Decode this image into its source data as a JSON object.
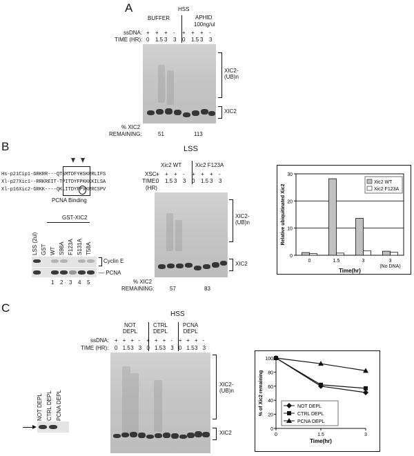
{
  "panels": {
    "a": "A",
    "b": "B",
    "c": "C"
  },
  "panel_a": {
    "header_hss": "HSS",
    "buffer": "BUFFER",
    "aphid": "APHID",
    "aphid_conc": "100ng/ul",
    "row_ssdna": "ssDNA:",
    "row_time": "TIME (HR):",
    "ssdna_marks": [
      "+",
      "+",
      "+",
      "-",
      "+",
      "+",
      "+",
      "-"
    ],
    "time_marks": [
      "0",
      "1.5",
      "3",
      "3",
      "0",
      "1.5",
      "3",
      "3"
    ],
    "label_ub": "XIC2-\n(UB)n",
    "label_xic2": "XIC2",
    "pct_label_1": "% XIC2",
    "pct_label_2": "REMAINING:",
    "pct_values": [
      "51",
      "113"
    ]
  },
  "panel_b": {
    "seq_lines": [
      "Hs-p21Cip1-GRKRR---QTSMTDFYHSKRRLIFS",
      "Xl-p27Xic1--RRKREIT-TPITDYFPKKKKILSA",
      "Xl-p16Xic2-GRKK----QKLITDYFPVKRRCSPV"
    ],
    "pcna_binding": "PCNA Binding",
    "gst_header": "GST-XIC2",
    "gst_lanes": [
      "LSS (2ul)",
      "GST",
      "WT",
      "S98A",
      "F123A",
      "S131A",
      "T58A"
    ],
    "lane_numbers": [
      "1",
      "2",
      "3",
      "4",
      "5"
    ],
    "cyclin": "Cyclin E",
    "pcna": "PCNA",
    "lss": "LSS",
    "wt": "Xic2 WT",
    "f123a": "Xic2 F123A",
    "row_xsc": "XSC:",
    "row_time": "TIME:",
    "row_hr": "(HR)",
    "xsc_marks": [
      "+",
      "+",
      "+",
      "-",
      "+",
      "+",
      "+",
      "-"
    ],
    "time_marks": [
      "0",
      "1.5",
      "3",
      "3",
      "0",
      "1.5",
      "3",
      "3"
    ],
    "label_ub": "XIC2-\n(UB)n",
    "label_xic2": "XIC2",
    "pct_label_1": "% XIC2",
    "pct_label_2": "REMAINING:",
    "pct_values": [
      "57",
      "83"
    ]
  },
  "panel_c": {
    "hss": "HSS",
    "not_depl": "NOT\nDEPL",
    "ctrl_depl": "CTRL\nDEPL",
    "pcna_depl": "PCNA\nDEPL",
    "row_ssdna": "ssDNA:",
    "row_time": "TIME (HR):",
    "ssdna_marks": [
      "+",
      "+",
      "+",
      "-",
      "+",
      "+",
      "+",
      "-",
      "+",
      "+",
      "+",
      "-"
    ],
    "time_marks": [
      "0",
      "1.5",
      "3",
      "3",
      "0",
      "1.5",
      "3",
      "3",
      "0",
      "1.5",
      "3",
      "3"
    ],
    "wb_lanes": [
      "NOT DEPL",
      "CTRL DEPL",
      "PCNA DEPL"
    ],
    "label_ub": "XIC2-\n(UB)n",
    "label_xic2": "XIC2"
  },
  "chart_data": [
    {
      "type": "bar",
      "title": "",
      "ylabel": "Relative ubiquitinated Xic2",
      "xlabel": "Time(hr)",
      "categories": [
        "0",
        "1.5",
        "3",
        "3\n(No DNA)"
      ],
      "ylim": [
        0,
        30
      ],
      "yticks": [
        0,
        10,
        20,
        30
      ],
      "series": [
        {
          "name": "Xic2 WT",
          "values": [
            1,
            28.2,
            13.6,
            1.5
          ],
          "color": "#c0c0c0"
        },
        {
          "name": "Xic2 F123A",
          "values": [
            0.6,
            0.8,
            1.6,
            1.1
          ],
          "color": "#ffffff"
        }
      ],
      "legend": "top-right",
      "grid": true
    },
    {
      "type": "line",
      "title": "",
      "ylabel": "% of Xic2 remaining",
      "xlabel": "Time(hr)",
      "x": [
        0,
        1.5,
        3
      ],
      "xticks": [
        "0",
        "1.5",
        "3"
      ],
      "ylim": [
        0,
        100
      ],
      "yticks": [
        0,
        20,
        40,
        60,
        80,
        100
      ],
      "series": [
        {
          "name": "NOT DEPL",
          "marker": "diamond",
          "values": [
            100,
            60,
            51
          ]
        },
        {
          "name": "CTRL DEPL",
          "marker": "square",
          "values": [
            100,
            62,
            57
          ]
        },
        {
          "name": "PCNA DEPL",
          "marker": "triangle",
          "values": [
            100,
            92,
            82
          ]
        }
      ],
      "legend": "bottom-left",
      "grid": false
    }
  ]
}
